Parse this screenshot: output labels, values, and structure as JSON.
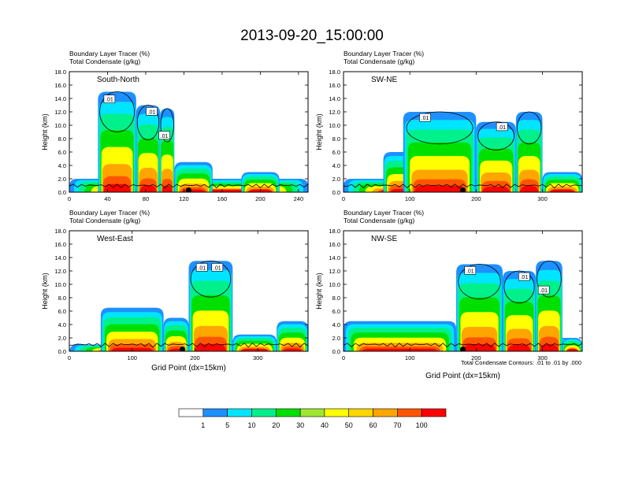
{
  "figure": {
    "title": "2013-09-20_15:00:00",
    "field_label": "Boundary Layer Tracer    (%)",
    "contour_label": "Total Condensate    (g/kg)",
    "contour_info": "Total Condensate Contours: .01 to .01 by .000"
  },
  "colorbar": {
    "colors": [
      "#ffffff",
      "#1e90ff",
      "#00e5ff",
      "#00f08c",
      "#00e000",
      "#a0e632",
      "#ffff00",
      "#ffd700",
      "#ffa500",
      "#ff5500",
      "#ff0000"
    ],
    "labels": [
      "1",
      "5",
      "10",
      "20",
      "30",
      "40",
      "50",
      "60",
      "70",
      "100"
    ]
  },
  "chart_data": [
    {
      "type": "heatmap",
      "panel_label": "South-North",
      "xlabel": "",
      "ylabel": "Height (km)",
      "xlim": [
        0,
        250
      ],
      "ylim": [
        0,
        18
      ],
      "xticks": [
        "0",
        "40",
        "80",
        "120",
        "160",
        "200",
        "240"
      ],
      "yticks": [
        "0.0",
        "2.0",
        "4.0",
        "6.0",
        "8.0",
        "10.0",
        "12.0",
        "14.0",
        "16.0",
        "18.0"
      ],
      "contour_labels": [
        ".01",
        ".01",
        ".01"
      ],
      "marker_x": 125,
      "tracer_plumes": [
        {
          "x0": 0,
          "x1": 250,
          "top": 2.0
        },
        {
          "x0": 30,
          "x1": 70,
          "top": 15.0
        },
        {
          "x0": 70,
          "x1": 95,
          "top": 13.0
        },
        {
          "x0": 95,
          "x1": 110,
          "top": 12.5
        },
        {
          "x0": 110,
          "x1": 150,
          "top": 4.5
        },
        {
          "x0": 180,
          "x1": 220,
          "top": 3.0
        }
      ]
    },
    {
      "type": "heatmap",
      "panel_label": "SW-NE",
      "xlabel": "",
      "ylabel": "Height (km)",
      "xlim": [
        0,
        360
      ],
      "ylim": [
        0,
        18
      ],
      "xticks": [
        "0",
        "100",
        "200",
        "300"
      ],
      "yticks": [
        "0.0",
        "2.0",
        "4.0",
        "6.0",
        "8.0",
        "10.0",
        "12.0",
        "14.0",
        "16.0",
        "18.0"
      ],
      "contour_labels": [
        ".01",
        ".01"
      ],
      "marker_x": 180,
      "tracer_plumes": [
        {
          "x0": 0,
          "x1": 360,
          "top": 2.0
        },
        {
          "x0": 60,
          "x1": 120,
          "top": 6.0
        },
        {
          "x0": 90,
          "x1": 200,
          "top": 12.0
        },
        {
          "x0": 200,
          "x1": 260,
          "top": 10.5
        },
        {
          "x0": 260,
          "x1": 300,
          "top": 12.0
        },
        {
          "x0": 300,
          "x1": 360,
          "top": 3.0
        }
      ]
    },
    {
      "type": "heatmap",
      "panel_label": "West-East",
      "xlabel": "Grid Point (dx=15km)",
      "ylabel": "Height (km)",
      "xlim": [
        0,
        380
      ],
      "ylim": [
        0,
        18
      ],
      "xticks": [
        "0",
        "100",
        "200",
        "300"
      ],
      "yticks": [
        "0.0",
        "2.0",
        "4.0",
        "6.0",
        "8.0",
        "10.0",
        "12.0",
        "14.0",
        "16.0",
        "18.0"
      ],
      "contour_labels": [
        ".01",
        ".01"
      ],
      "marker_x": 180,
      "tracer_plumes": [
        {
          "x0": 0,
          "x1": 380,
          "top": 1.0
        },
        {
          "x0": 50,
          "x1": 150,
          "top": 6.5
        },
        {
          "x0": 150,
          "x1": 190,
          "top": 5.0
        },
        {
          "x0": 190,
          "x1": 260,
          "top": 13.5
        },
        {
          "x0": 260,
          "x1": 330,
          "top": 2.5
        },
        {
          "x0": 330,
          "x1": 380,
          "top": 4.5
        }
      ]
    },
    {
      "type": "heatmap",
      "panel_label": "NW-SE",
      "xlabel": "Grid Point (dx=15km)",
      "ylabel": "Height (km)",
      "xlim": [
        0,
        360
      ],
      "ylim": [
        0,
        18
      ],
      "xticks": [
        "0",
        "100",
        "200",
        "300"
      ],
      "yticks": [
        "0.0",
        "2.0",
        "4.0",
        "6.0",
        "8.0",
        "10.0",
        "12.0",
        "14.0",
        "16.0",
        "18.0"
      ],
      "contour_labels": [
        ".01",
        ".01",
        ".01"
      ],
      "marker_x": 180,
      "tracer_plumes": [
        {
          "x0": 0,
          "x1": 360,
          "top": 2.0
        },
        {
          "x0": 0,
          "x1": 170,
          "top": 4.5
        },
        {
          "x0": 170,
          "x1": 240,
          "top": 13.0
        },
        {
          "x0": 240,
          "x1": 290,
          "top": 12.0
        },
        {
          "x0": 290,
          "x1": 330,
          "top": 13.5
        },
        {
          "x0": 330,
          "x1": 360,
          "top": 2.0
        }
      ]
    }
  ]
}
